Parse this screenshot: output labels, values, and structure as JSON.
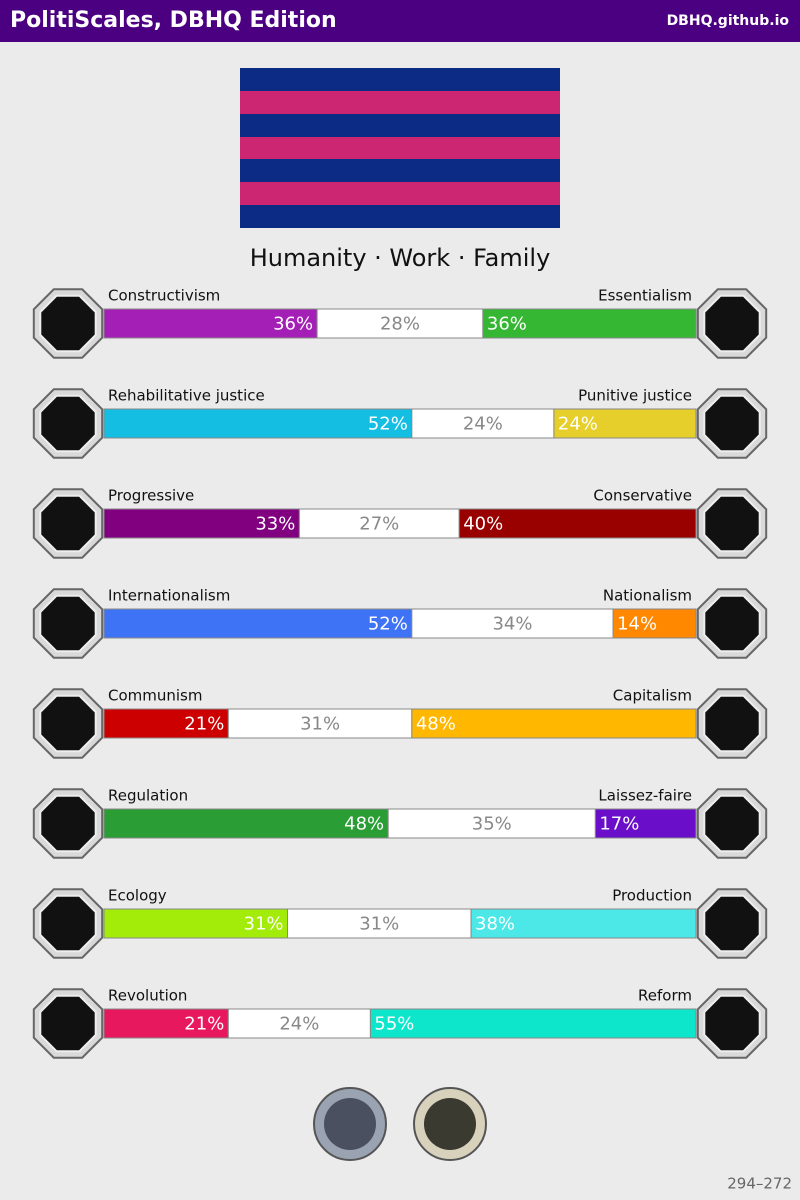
{
  "header": {
    "title": "PolitiScales, DBHQ Edition",
    "link": "DBHQ.github.io"
  },
  "chart_data": {
    "type": "bar",
    "orientation": "horizontal",
    "stacked": true,
    "title": "Humanity · Work · Family",
    "xlim": [
      0,
      100
    ],
    "rows": [
      {
        "left": "Constructivism",
        "right": "Essentialism",
        "values": [
          36,
          28,
          36
        ],
        "value_labels": [
          "36%",
          "28%",
          "36%"
        ],
        "colors": [
          "#a41fb5",
          "#ffffff",
          "#35b733"
        ]
      },
      {
        "left": "Rehabilitative justice",
        "right": "Punitive justice",
        "values": [
          52,
          24,
          24
        ],
        "value_labels": [
          "52%",
          "24%",
          "24%"
        ],
        "colors": [
          "#14bee3",
          "#ffffff",
          "#e6cf2a"
        ]
      },
      {
        "left": "Progressive",
        "right": "Conservative",
        "values": [
          33,
          27,
          40
        ],
        "value_labels": [
          "33%",
          "27%",
          "40%"
        ],
        "colors": [
          "#800080",
          "#ffffff",
          "#990000"
        ]
      },
      {
        "left": "Internationalism",
        "right": "Nationalism",
        "values": [
          52,
          34,
          14
        ],
        "value_labels": [
          "52%",
          "34%",
          "14%"
        ],
        "colors": [
          "#3f73f5",
          "#ffffff",
          "#ff8800"
        ]
      },
      {
        "left": "Communism",
        "right": "Capitalism",
        "values": [
          21,
          31,
          48
        ],
        "value_labels": [
          "21%",
          "31%",
          "48%"
        ],
        "colors": [
          "#cc0000",
          "#ffffff",
          "#ffb700"
        ]
      },
      {
        "left": "Regulation",
        "right": "Laissez-faire",
        "values": [
          48,
          35,
          17
        ],
        "value_labels": [
          "48%",
          "35%",
          "17%"
        ],
        "colors": [
          "#2a9d34",
          "#ffffff",
          "#6a0ec9"
        ]
      },
      {
        "left": "Ecology",
        "right": "Production",
        "values": [
          31,
          31,
          38
        ],
        "value_labels": [
          "31%",
          "31%",
          "38%"
        ],
        "colors": [
          "#a3ec0a",
          "#ffffff",
          "#4ce8e8"
        ]
      },
      {
        "left": "Revolution",
        "right": "Reform",
        "values": [
          21,
          24,
          55
        ],
        "value_labels": [
          "21%",
          "24%",
          "55%"
        ],
        "colors": [
          "#e8185f",
          "#ffffff",
          "#0ee6cc"
        ]
      }
    ]
  },
  "footer": "294–272"
}
